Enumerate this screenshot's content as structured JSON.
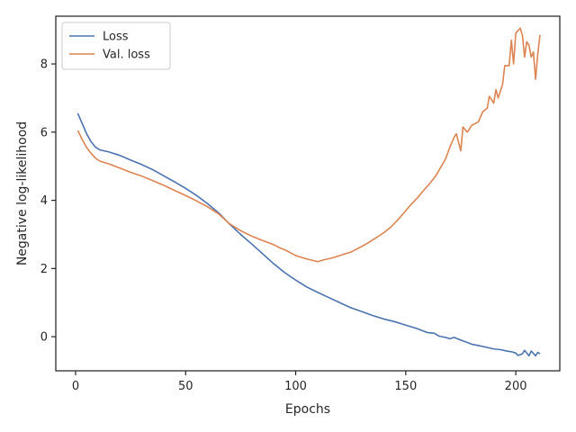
{
  "chart_data": {
    "type": "line",
    "xlabel": "Epochs",
    "ylabel": "Negative log-likelihood",
    "xlim": [
      -9,
      220
    ],
    "ylim": [
      -1.0,
      9.4
    ],
    "xticks": [
      0,
      50,
      100,
      150,
      200
    ],
    "yticks": [
      0,
      2,
      4,
      6,
      8
    ],
    "grid": false,
    "legend_position": "top-left",
    "series": [
      {
        "name": "Loss",
        "color": "#4c72b0",
        "points": [
          [
            1,
            6.55
          ],
          [
            3,
            6.25
          ],
          [
            5,
            5.95
          ],
          [
            7,
            5.72
          ],
          [
            9,
            5.56
          ],
          [
            11,
            5.48
          ],
          [
            15,
            5.42
          ],
          [
            20,
            5.32
          ],
          [
            25,
            5.18
          ],
          [
            30,
            5.05
          ],
          [
            35,
            4.9
          ],
          [
            40,
            4.72
          ],
          [
            45,
            4.54
          ],
          [
            50,
            4.35
          ],
          [
            55,
            4.14
          ],
          [
            60,
            3.9
          ],
          [
            65,
            3.63
          ],
          [
            70,
            3.3
          ],
          [
            75,
            3.0
          ],
          [
            80,
            2.72
          ],
          [
            85,
            2.43
          ],
          [
            90,
            2.14
          ],
          [
            95,
            1.88
          ],
          [
            100,
            1.66
          ],
          [
            105,
            1.46
          ],
          [
            110,
            1.3
          ],
          [
            115,
            1.15
          ],
          [
            120,
            1.0
          ],
          [
            125,
            0.85
          ],
          [
            130,
            0.74
          ],
          [
            135,
            0.62
          ],
          [
            140,
            0.52
          ],
          [
            145,
            0.44
          ],
          [
            150,
            0.34
          ],
          [
            155,
            0.24
          ],
          [
            160,
            0.12
          ],
          [
            163,
            0.1
          ],
          [
            165,
            0.02
          ],
          [
            168,
            -0.02
          ],
          [
            170,
            -0.06
          ],
          [
            172,
            -0.02
          ],
          [
            175,
            -0.1
          ],
          [
            178,
            -0.17
          ],
          [
            180,
            -0.22
          ],
          [
            183,
            -0.26
          ],
          [
            186,
            -0.3
          ],
          [
            190,
            -0.36
          ],
          [
            193,
            -0.38
          ],
          [
            196,
            -0.42
          ],
          [
            198,
            -0.44
          ],
          [
            200,
            -0.48
          ],
          [
            201,
            -0.55
          ],
          [
            203,
            -0.5
          ],
          [
            204,
            -0.4
          ],
          [
            206,
            -0.56
          ],
          [
            207,
            -0.42
          ],
          [
            209,
            -0.56
          ],
          [
            210,
            -0.46
          ],
          [
            211,
            -0.5
          ]
        ]
      },
      {
        "name": "Val. loss",
        "color": "#dd8452",
        "points": [
          [
            1,
            6.05
          ],
          [
            3,
            5.78
          ],
          [
            5,
            5.55
          ],
          [
            7,
            5.38
          ],
          [
            9,
            5.24
          ],
          [
            11,
            5.15
          ],
          [
            15,
            5.07
          ],
          [
            20,
            4.95
          ],
          [
            25,
            4.82
          ],
          [
            30,
            4.71
          ],
          [
            35,
            4.58
          ],
          [
            40,
            4.44
          ],
          [
            45,
            4.29
          ],
          [
            50,
            4.14
          ],
          [
            55,
            3.98
          ],
          [
            60,
            3.81
          ],
          [
            65,
            3.6
          ],
          [
            70,
            3.31
          ],
          [
            75,
            3.11
          ],
          [
            80,
            2.95
          ],
          [
            85,
            2.82
          ],
          [
            90,
            2.7
          ],
          [
            93,
            2.6
          ],
          [
            95,
            2.55
          ],
          [
            98,
            2.45
          ],
          [
            100,
            2.38
          ],
          [
            103,
            2.32
          ],
          [
            105,
            2.28
          ],
          [
            107,
            2.25
          ],
          [
            110,
            2.2
          ],
          [
            113,
            2.26
          ],
          [
            116,
            2.3
          ],
          [
            119,
            2.36
          ],
          [
            122,
            2.42
          ],
          [
            125,
            2.48
          ],
          [
            128,
            2.58
          ],
          [
            131,
            2.68
          ],
          [
            134,
            2.8
          ],
          [
            137,
            2.92
          ],
          [
            140,
            3.05
          ],
          [
            143,
            3.2
          ],
          [
            146,
            3.4
          ],
          [
            149,
            3.62
          ],
          [
            152,
            3.85
          ],
          [
            155,
            4.05
          ],
          [
            158,
            4.28
          ],
          [
            161,
            4.5
          ],
          [
            164,
            4.75
          ],
          [
            166,
            4.98
          ],
          [
            168,
            5.2
          ],
          [
            170,
            5.55
          ],
          [
            172,
            5.85
          ],
          [
            173,
            5.95
          ],
          [
            175,
            5.45
          ],
          [
            176,
            6.15
          ],
          [
            178,
            6.0
          ],
          [
            180,
            6.2
          ],
          [
            183,
            6.3
          ],
          [
            185,
            6.6
          ],
          [
            187,
            6.7
          ],
          [
            188,
            7.05
          ],
          [
            190,
            6.85
          ],
          [
            191,
            7.25
          ],
          [
            192,
            7.0
          ],
          [
            194,
            7.4
          ],
          [
            195,
            7.95
          ],
          [
            197,
            7.95
          ],
          [
            198,
            8.7
          ],
          [
            199,
            8.0
          ],
          [
            200,
            8.9
          ],
          [
            202,
            9.05
          ],
          [
            203,
            8.85
          ],
          [
            204,
            8.2
          ],
          [
            205,
            8.65
          ],
          [
            206,
            8.55
          ],
          [
            207,
            8.2
          ],
          [
            208,
            8.35
          ],
          [
            209,
            7.55
          ],
          [
            210,
            8.3
          ],
          [
            211,
            8.85
          ]
        ]
      }
    ]
  }
}
